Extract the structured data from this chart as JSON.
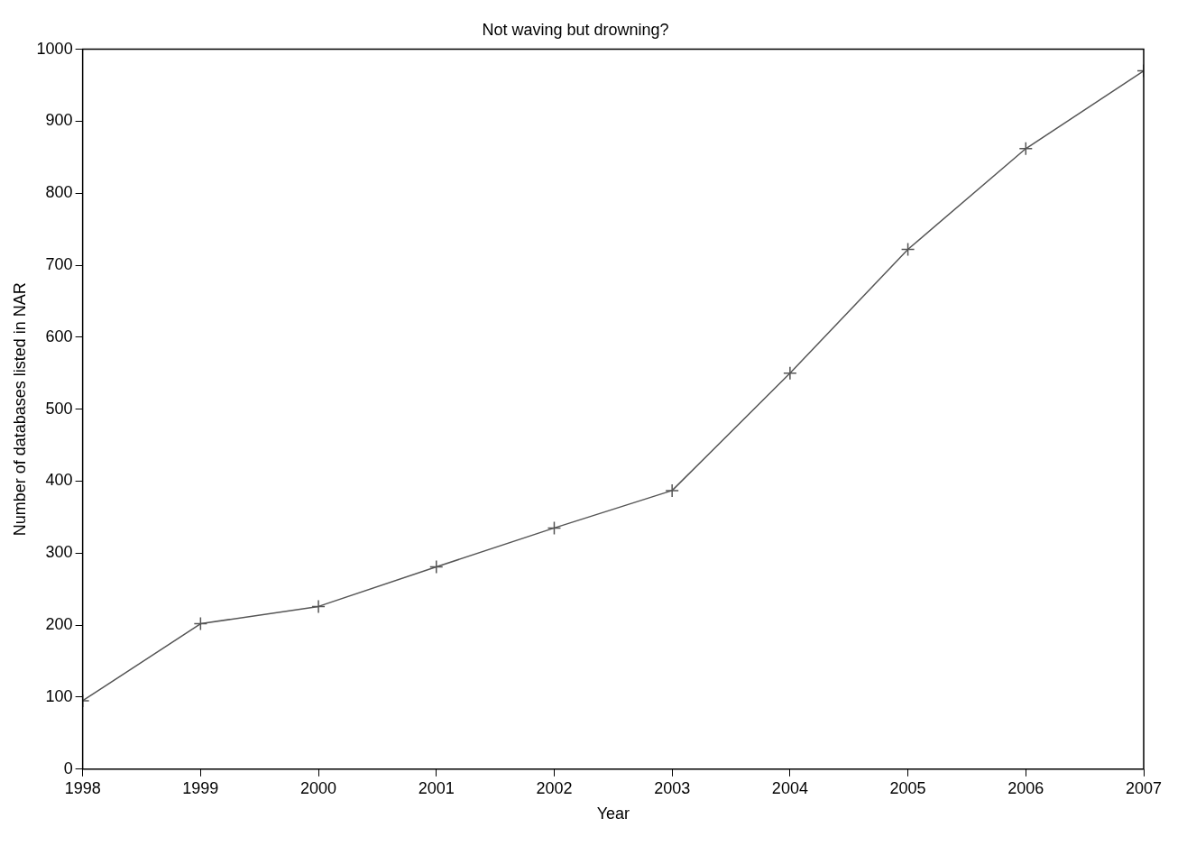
{
  "chart_data": {
    "type": "line",
    "title": "Not waving but drowning?",
    "xlabel": "Year",
    "ylabel": "Number of databases listed in NAR",
    "x": [
      1998,
      1999,
      2000,
      2001,
      2002,
      2003,
      2004,
      2005,
      2006,
      2007
    ],
    "series": [
      {
        "color": "#555555",
        "values": [
          95,
          202,
          226,
          281,
          335,
          387,
          550,
          722,
          862,
          970
        ]
      }
    ],
    "xlim": [
      1998,
      2007
    ],
    "xticks": [
      1998,
      1999,
      2000,
      2001,
      2002,
      2003,
      2004,
      2005,
      2006,
      2007
    ],
    "ylim": [
      0,
      1000
    ],
    "yticks": [
      0,
      100,
      200,
      300,
      400,
      500,
      600,
      700,
      800,
      900,
      1000
    ],
    "grid": false,
    "legend": false,
    "marker": "cross",
    "line_style": "solid"
  }
}
